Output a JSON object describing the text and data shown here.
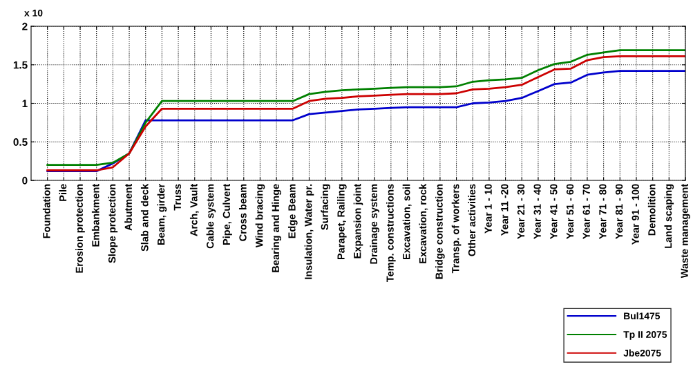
{
  "chart_data": {
    "type": "line",
    "categories": [
      "Foundation",
      "Pile",
      "Erosion protection",
      "Embankment",
      "Slope protection",
      "Abutment",
      "Slab and deck",
      "Beam, girder",
      "Truss",
      "Arch, Vault",
      "Cable system",
      "Pipe, Culvert",
      "Cross beam",
      "Wind bracing",
      "Bearing and Hinge",
      "Edge Beam",
      "Insulation, Water pr.",
      "Surfacing",
      "Parapet, Railing",
      "Expansion joint",
      "Drainage system",
      "Temp. constructions",
      "Excavation, soil",
      "Excavation, rock",
      "Bridge construction",
      "Transp. of workers",
      "Other activities",
      "Year 1 - 10",
      "Year 11 -20",
      "Year 21 - 30",
      "Year 31 - 40",
      "Year 41 - 50",
      "Year 51 - 60",
      "Year 61 - 70",
      "Year 71 - 80",
      "Year 81 - 90",
      "Year 91 - 100",
      "Demolition",
      "Land scaping",
      "Waste management"
    ],
    "series": [
      {
        "name": "Bul1475",
        "color": "#0000cc",
        "values": [
          0.12,
          0.12,
          0.12,
          0.12,
          0.22,
          0.35,
          0.78,
          0.78,
          0.78,
          0.78,
          0.78,
          0.78,
          0.78,
          0.78,
          0.78,
          0.78,
          0.86,
          0.88,
          0.9,
          0.92,
          0.93,
          0.94,
          0.95,
          0.95,
          0.95,
          0.95,
          1.0,
          1.01,
          1.03,
          1.07,
          1.16,
          1.25,
          1.27,
          1.37,
          1.4,
          1.42,
          1.42,
          1.42,
          1.42,
          1.42
        ]
      },
      {
        "name": "Tp II 2075",
        "color": "#008000",
        "values": [
          0.2,
          0.2,
          0.2,
          0.2,
          0.23,
          0.35,
          0.75,
          1.03,
          1.03,
          1.03,
          1.03,
          1.03,
          1.03,
          1.03,
          1.03,
          1.03,
          1.12,
          1.15,
          1.17,
          1.18,
          1.19,
          1.2,
          1.21,
          1.21,
          1.21,
          1.22,
          1.28,
          1.3,
          1.31,
          1.33,
          1.43,
          1.51,
          1.54,
          1.63,
          1.66,
          1.69,
          1.69,
          1.69,
          1.69,
          1.69
        ]
      },
      {
        "name": "Jbe2075",
        "color": "#cc0000",
        "values": [
          0.13,
          0.13,
          0.13,
          0.13,
          0.17,
          0.35,
          0.7,
          0.93,
          0.93,
          0.93,
          0.93,
          0.93,
          0.93,
          0.93,
          0.93,
          0.93,
          1.03,
          1.06,
          1.07,
          1.09,
          1.1,
          1.11,
          1.12,
          1.12,
          1.12,
          1.13,
          1.18,
          1.19,
          1.21,
          1.24,
          1.34,
          1.44,
          1.45,
          1.56,
          1.6,
          1.61,
          1.61,
          1.61,
          1.61,
          1.61
        ]
      }
    ],
    "ylim": [
      0,
      2
    ],
    "yticks": [
      0,
      0.5,
      1,
      1.5,
      2
    ],
    "annotations": [
      "x 10"
    ],
    "grid": true,
    "legend": "bottom right",
    "line_style": "solid",
    "marker": "none"
  }
}
